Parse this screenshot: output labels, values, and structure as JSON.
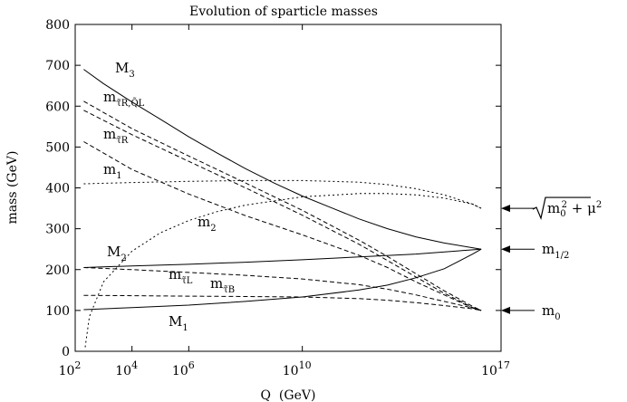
{
  "chart_data": {
    "type": "line",
    "title": "Evolution of sparticle masses",
    "xlabel": "Q  (GeV)",
    "ylabel": "mass (GeV)",
    "xscale": "log10",
    "xlim_log10": [
      2,
      17
    ],
    "ylim": [
      0,
      800
    ],
    "yticks": [
      0,
      100,
      200,
      300,
      400,
      500,
      600,
      700,
      800
    ],
    "xticks": [
      {
        "log10": 2,
        "base": "10",
        "exp": "2"
      },
      {
        "log10": 4,
        "base": "10",
        "exp": "4"
      },
      {
        "log10": 6,
        "base": "10",
        "exp": "6"
      },
      {
        "log10": 10,
        "base": "10",
        "exp": "10"
      },
      {
        "log10": 17,
        "base": "10",
        "exp": "17"
      }
    ],
    "grid": false,
    "series": [
      {
        "name": "M3",
        "label_main": "M",
        "label_sub": "3",
        "style": "solid",
        "log10Q": [
          2.3,
          3,
          4,
          5,
          6,
          7,
          8,
          9,
          10,
          11,
          12,
          13,
          14,
          15,
          16.3
        ],
        "mass": [
          690,
          655,
          610,
          568,
          525,
          485,
          447,
          412,
          380,
          352,
          324,
          300,
          280,
          265,
          250
        ]
      },
      {
        "name": "M2",
        "label_main": "M",
        "label_sub": "2",
        "style": "solid",
        "log10Q": [
          2.3,
          4,
          6,
          8,
          10,
          12,
          14,
          16.3
        ],
        "mass": [
          205,
          209,
          213,
          218,
          224,
          231,
          238,
          250
        ]
      },
      {
        "name": "M1",
        "label_main": "M",
        "label_sub": "1",
        "style": "solid",
        "log10Q": [
          2.3,
          4,
          6,
          8,
          10,
          12,
          13,
          14,
          15,
          16,
          16.3
        ],
        "mass": [
          102,
          107,
          113,
          122,
          133,
          150,
          162,
          180,
          202,
          238,
          250
        ]
      },
      {
        "name": "m_qL",
        "label_main": "m",
        "label_sub": "τ̃R,Q̃L",
        "style": "dashed",
        "log10Q": [
          2.3,
          4,
          6,
          8,
          10,
          12,
          13,
          14,
          15,
          16,
          16.3
        ],
        "mass": [
          612,
          545,
          478,
          412,
          345,
          272,
          232,
          190,
          148,
          110,
          100
        ]
      },
      {
        "name": "m_qL_2",
        "label_main": "",
        "label_sub": "",
        "style": "dashed",
        "log10Q": [
          2.3,
          4,
          6,
          8,
          10,
          12,
          13,
          14,
          15,
          16,
          16.3
        ],
        "mass": [
          590,
          530,
          465,
          400,
          333,
          262,
          222,
          182,
          142,
          107,
          100
        ]
      },
      {
        "name": "m_tauR",
        "label_main": "m",
        "label_sub": "τ̃R",
        "style": "dashed",
        "log10Q": [
          2.3,
          4,
          6,
          8,
          10,
          12,
          13,
          14,
          15,
          16,
          16.3
        ],
        "mass": [
          513,
          445,
          385,
          332,
          285,
          235,
          205,
          170,
          138,
          106,
          100
        ]
      },
      {
        "name": "m1",
        "label_main": "m",
        "label_sub": "1",
        "style": "dotted",
        "log10Q": [
          2.3,
          4,
          6,
          8,
          10,
          12,
          13,
          14,
          15,
          16,
          16.3
        ],
        "mass": [
          410,
          413,
          416,
          418,
          418,
          414,
          408,
          398,
          383,
          360,
          350
        ]
      },
      {
        "name": "m2",
        "label_main": "m",
        "label_sub": "2",
        "style": "dotted",
        "log10Q": [
          2.35,
          2.5,
          3,
          4,
          5,
          6,
          7,
          8,
          10,
          12,
          13,
          14,
          15,
          16,
          16.3
        ],
        "mass": [
          10,
          85,
          170,
          245,
          290,
          320,
          342,
          358,
          378,
          386,
          386,
          383,
          375,
          360,
          350
        ]
      },
      {
        "name": "m_tauL",
        "label_main": "m",
        "label_sub": "τ̃L",
        "style": "dashed",
        "log10Q": [
          2.3,
          4,
          6,
          8,
          10,
          12,
          13,
          14,
          15,
          16,
          16.3
        ],
        "mass": [
          205,
          200,
          193,
          186,
          177,
          163,
          152,
          138,
          122,
          106,
          100
        ]
      },
      {
        "name": "m_tauB",
        "label_main": "m",
        "label_sub": "τ̃B",
        "style": "dashed",
        "log10Q": [
          2.3,
          4,
          6,
          8,
          10,
          12,
          13,
          14,
          15,
          16,
          16.3
        ],
        "mass": [
          137,
          136,
          135,
          134,
          133,
          129,
          125,
          119,
          112,
          104,
          100
        ]
      }
    ],
    "right_annotations": [
      {
        "name": "sqrt-m0-mu",
        "mass": 350,
        "formula": "√(m₀² + μ²)",
        "label_parts": [
          "m",
          "0",
          "2",
          "+ μ",
          "2"
        ]
      },
      {
        "name": "m-half",
        "mass": 250,
        "label_main": "m",
        "label_sub": "1/2"
      },
      {
        "name": "m-zero",
        "mass": 100,
        "label_main": "m",
        "label_sub": "0"
      }
    ]
  }
}
